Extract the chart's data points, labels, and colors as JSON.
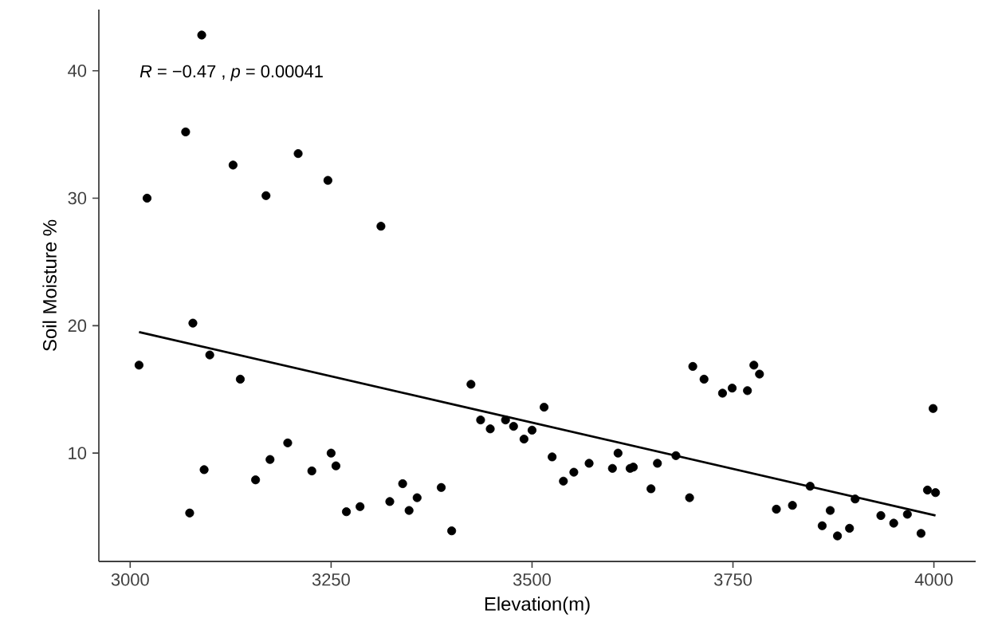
{
  "chart_data": {
    "type": "scatter",
    "xlabel": "Elevation(m)",
    "ylabel": "Soil Moisture %",
    "annotations": [
      "*R* = −0.47 , *p* = 0.00041"
    ],
    "xlim": [
      2961,
      4052
    ],
    "ylim": [
      1.5,
      44.8
    ],
    "xticks": [
      3000,
      3250,
      3500,
      3750,
      4000
    ],
    "yticks": [
      10,
      20,
      30,
      40
    ],
    "grid": false,
    "marker": "circle",
    "series": [
      {
        "color": "#000000",
        "x": [
          3021,
          3069,
          3089,
          3128,
          3169,
          3209,
          3246,
          3312,
          3011,
          3078,
          3099,
          3137,
          3074,
          3092,
          3156,
          3174,
          3196,
          3226,
          3250,
          3256,
          3269,
          3286,
          3323,
          3339,
          3347,
          3357,
          3387,
          3400,
          3424,
          3436,
          3448,
          3467,
          3477,
          3490,
          3500,
          3515,
          3525,
          3539,
          3552,
          3571,
          3600,
          3607,
          3622,
          3626,
          3648,
          3656,
          3679,
          3696,
          3700,
          3714,
          3737,
          3749,
          3768,
          3776,
          3783,
          3804,
          3824,
          3846,
          3861,
          3871,
          3880,
          3895,
          3902,
          3934,
          3950,
          3967,
          3984,
          3992,
          3999,
          4002
        ],
        "values": [
          30.0,
          35.2,
          42.8,
          32.6,
          30.2,
          33.5,
          31.4,
          27.8,
          16.9,
          20.2,
          17.7,
          15.8,
          5.3,
          8.7,
          7.9,
          9.5,
          10.8,
          8.6,
          10.0,
          9.0,
          5.4,
          5.8,
          6.2,
          7.6,
          5.5,
          6.5,
          7.3,
          3.9,
          15.4,
          12.6,
          11.9,
          12.6,
          12.1,
          11.1,
          11.8,
          13.6,
          9.7,
          7.8,
          8.5,
          9.2,
          8.8,
          10.0,
          8.8,
          8.9,
          7.2,
          9.2,
          9.8,
          6.5,
          16.8,
          15.8,
          14.7,
          15.1,
          14.9,
          16.9,
          16.2,
          5.6,
          5.9,
          7.4,
          4.3,
          5.5,
          3.5,
          4.1,
          6.4,
          5.1,
          4.5,
          5.2,
          3.7,
          7.1,
          13.5,
          6.9
        ]
      },
      {
        "type": "line",
        "color": "#000000",
        "line_style": "solid",
        "marker": "none",
        "x": [
          3011,
          4002
        ],
        "values": [
          19.5,
          5.1
        ]
      }
    ]
  }
}
